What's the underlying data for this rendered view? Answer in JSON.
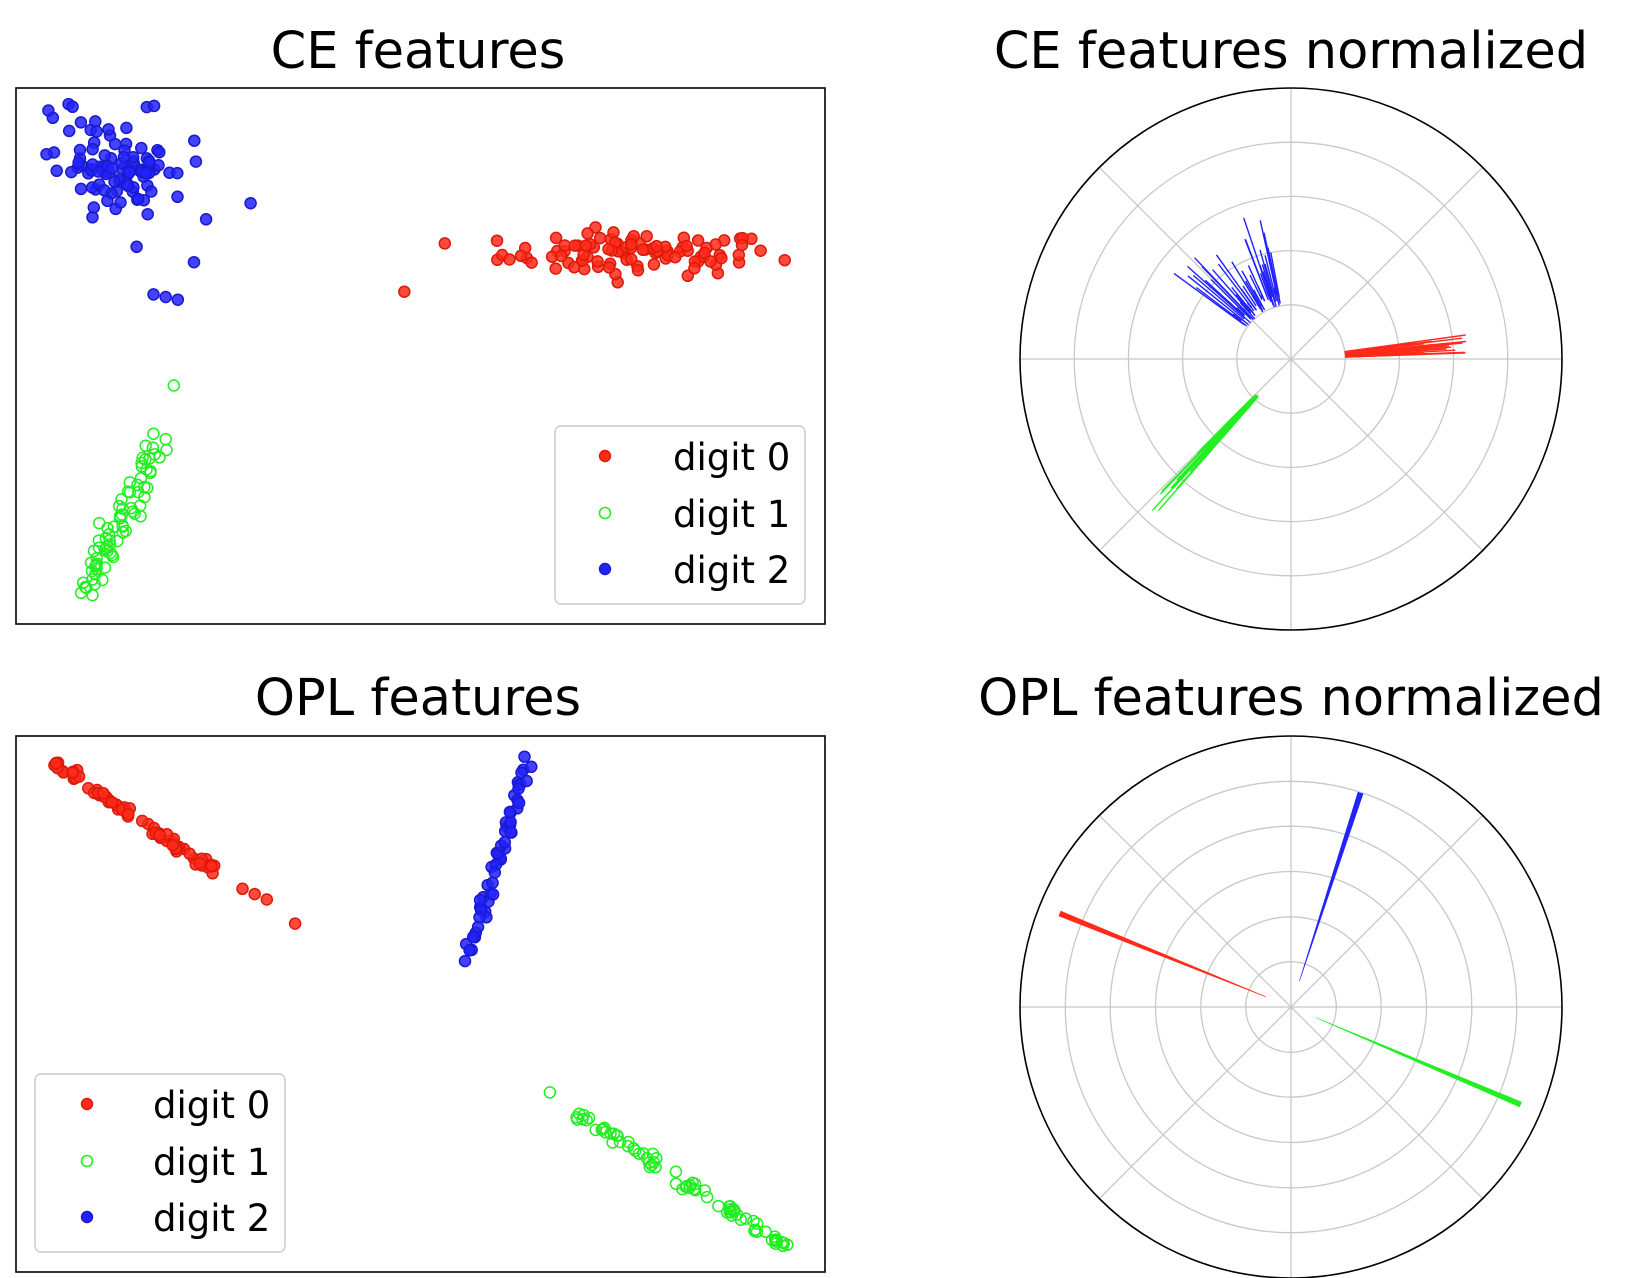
{
  "colors": {
    "digit0": "#ff2a1a",
    "digit1": "#22ee22",
    "digit2": "#2222ff",
    "digit0_edge": "#dd1a0a",
    "digit1_edge": "#16c016",
    "digit2_edge": "#1a1acc",
    "grid": "#c8c8c8",
    "axes": "#000000"
  },
  "legend": [
    "digit 0",
    "digit 1",
    "digit 2"
  ],
  "chart_data": [
    {
      "id": "ce-features",
      "type": "scatter",
      "title": "CE features",
      "xlim": [
        0,
        100
      ],
      "ylim": [
        0,
        100
      ],
      "axes_ticks": false,
      "legend_position": "lower right",
      "series": [
        {
          "name": "digit 0",
          "center": [
            77,
            69
          ],
          "spread": [
            8.5,
            2.0
          ],
          "n": 95,
          "filled": true,
          "outliers": [
            [
              48,
              62
            ],
            [
              53,
              71
            ],
            [
              61,
              68
            ]
          ]
        },
        {
          "name": "digit 1",
          "line": [
            [
              8.5,
              5.5
            ],
            [
              17.5,
              34.0
            ]
          ],
          "n": 70,
          "perp_spread": 0.9,
          "filled": false,
          "outliers": [
            [
              19.5,
              44.5
            ],
            [
              17.0,
              35.5
            ],
            [
              18.5,
              34.5
            ],
            [
              12.0,
              12.5
            ]
          ]
        },
        {
          "name": "digit 2",
          "center": [
            13,
            85
          ],
          "spread": [
            4.0,
            4.2
          ],
          "n": 95,
          "filled": true,
          "outliers": [
            [
              4.0,
              95.8
            ],
            [
              6.5,
              97.0
            ],
            [
              7.0,
              96.5
            ],
            [
              29.0,
              78.5
            ],
            [
              22.0,
              67.5
            ],
            [
              17.0,
              61.5
            ],
            [
              20.0,
              60.5
            ],
            [
              18.5,
              61.0
            ],
            [
              23.5,
              75.5
            ]
          ]
        }
      ]
    },
    {
      "id": "ce-normalized",
      "type": "polar",
      "title": "CE features normalized",
      "r_grid": [
        0.2,
        0.4,
        0.6,
        0.8,
        1.0
      ],
      "theta_grid_deg": [
        0,
        45,
        90,
        135,
        180,
        225,
        270,
        315
      ],
      "series": [
        {
          "name": "digit 0",
          "angle_deg": [
            2,
            8
          ],
          "r_start": [
            0.2,
            0.2
          ],
          "r_end": [
            0.35,
            0.68
          ],
          "n": 45
        },
        {
          "name": "digit 1",
          "angle_deg": [
            225,
            229
          ],
          "r_start": [
            0.18,
            0.25
          ],
          "r_end": [
            0.3,
            0.78
          ],
          "n": 35
        },
        {
          "name": "digit 2",
          "angle_deg": [
            100,
            144
          ],
          "r_start": [
            0.2,
            0.25
          ],
          "r_end": [
            0.25,
            0.55
          ],
          "n": 60
        }
      ]
    },
    {
      "id": "opl-features",
      "type": "scatter",
      "title": "OPL features",
      "xlim": [
        0,
        100
      ],
      "ylim": [
        0,
        100
      ],
      "axes_ticks": false,
      "legend_position": "lower left",
      "series": [
        {
          "name": "digit 0",
          "line": [
            [
              4.5,
              95.0
            ],
            [
              25.0,
              74.5
            ]
          ],
          "n": 75,
          "perp_spread": 0.4,
          "filled": true,
          "outliers": [
            [
              28.0,
              71.5
            ],
            [
              29.5,
              70.5
            ],
            [
              31.0,
              69.5
            ],
            [
              34.5,
              65.0
            ]
          ]
        },
        {
          "name": "digit 1",
          "line": [
            [
              69.5,
              29.5
            ],
            [
              95.5,
              4.5
            ]
          ],
          "n": 75,
          "perp_spread": 0.4,
          "filled": false,
          "outliers": [
            [
              66.0,
              33.5
            ]
          ]
        },
        {
          "name": "digit 2",
          "line": [
            [
              56.0,
              59.5
            ],
            [
              63.5,
              96.5
            ]
          ],
          "n": 55,
          "perp_spread": 0.35,
          "filled": true,
          "outliers": [
            [
              55.5,
              58.0
            ]
          ]
        }
      ]
    },
    {
      "id": "opl-normalized",
      "type": "polar",
      "title": "OPL features normalized",
      "r_grid": [
        0.167,
        0.333,
        0.5,
        0.667,
        0.833,
        1.0
      ],
      "theta_grid_deg": [
        0,
        45,
        90,
        135,
        180,
        225,
        270,
        315
      ],
      "series": [
        {
          "name": "digit 0",
          "angle_deg": [
            158,
            158
          ],
          "r_start": [
            0.1,
            0.1
          ],
          "r_end": [
            0.92,
            0.92
          ],
          "n": 1
        },
        {
          "name": "digit 1",
          "angle_deg": [
            -23,
            -23
          ],
          "r_start": [
            0.1,
            0.1
          ],
          "r_end": [
            0.92,
            0.92
          ],
          "n": 1
        },
        {
          "name": "digit 2",
          "angle_deg": [
            72,
            72
          ],
          "r_start": [
            0.1,
            0.1
          ],
          "r_end": [
            0.83,
            0.83
          ],
          "n": 1
        }
      ]
    }
  ]
}
